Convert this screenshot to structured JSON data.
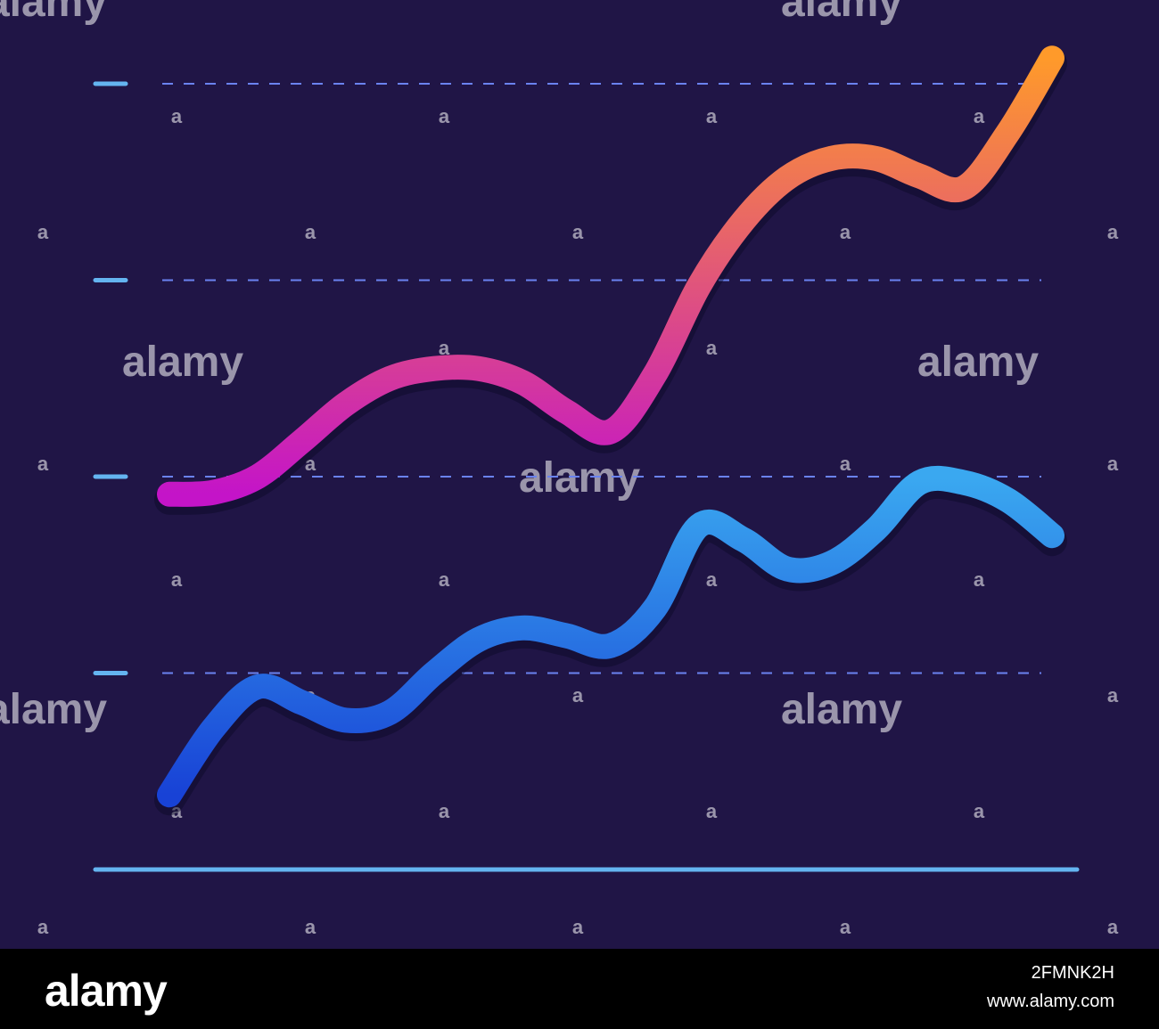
{
  "chart_data": {
    "type": "line",
    "ylim": [
      0,
      4
    ],
    "grid": true,
    "x": [
      0,
      1,
      2,
      3,
      4,
      5,
      6,
      7,
      8,
      9,
      10,
      11,
      12,
      13,
      14,
      15,
      16,
      17,
      18,
      19,
      20
    ],
    "series": [
      {
        "color_start": "#ff9a2a",
        "color_end": "#c414c8",
        "values": [
          1.91,
          1.92,
          2.0,
          2.18,
          2.37,
          2.5,
          2.55,
          2.55,
          2.48,
          2.33,
          2.23,
          2.52,
          2.97,
          3.3,
          3.52,
          3.62,
          3.62,
          3.53,
          3.47,
          3.75,
          4.13
        ]
      },
      {
        "color_start": "#3aa8f0",
        "color_end": "#1842d6",
        "values": [
          0.38,
          0.72,
          0.93,
          0.85,
          0.76,
          0.8,
          1.0,
          1.17,
          1.23,
          1.19,
          1.14,
          1.33,
          1.75,
          1.68,
          1.53,
          1.56,
          1.73,
          1.97,
          1.97,
          1.88,
          1.7
        ]
      }
    ]
  },
  "colors": {
    "background": "#201546",
    "grid": "#6a82f0",
    "tick": "#64b4f0",
    "baseline": "#64b4f0"
  },
  "watermark": {
    "big": "alamy",
    "small": "a"
  },
  "footer": {
    "brand": "alamy",
    "stock_id": "2FMNK2H",
    "url": "www.alamy.com"
  }
}
